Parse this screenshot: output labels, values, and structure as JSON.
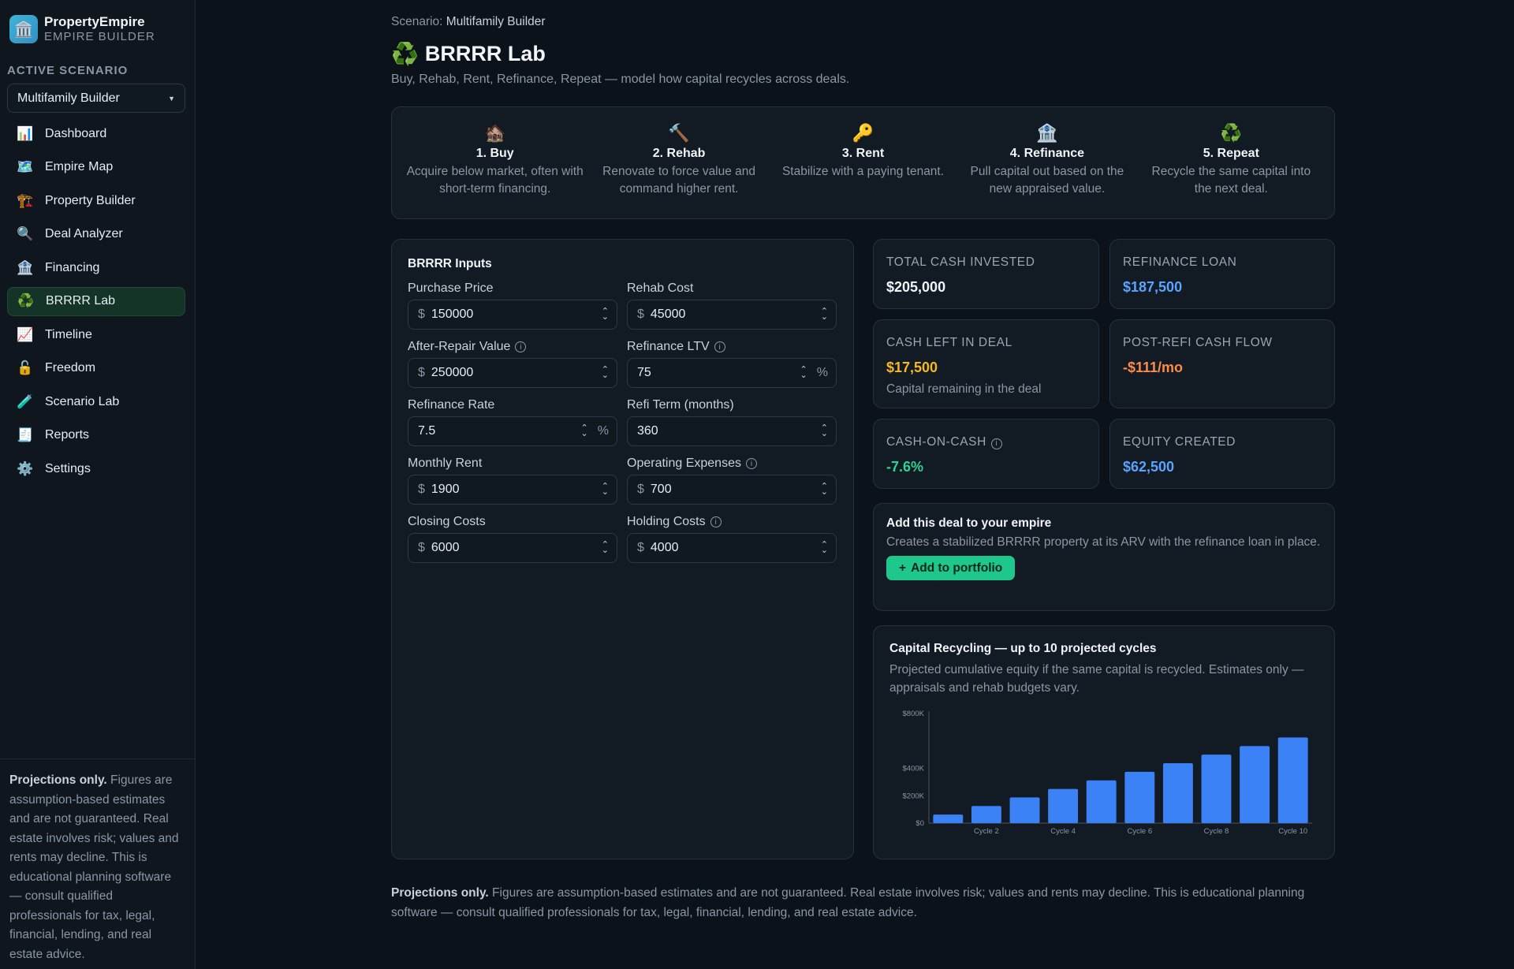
{
  "brand": {
    "icon": "🏛️",
    "name": "PropertyEmpire",
    "sub": "EMPIRE BUILDER"
  },
  "sidebar": {
    "active_label": "ACTIVE SCENARIO",
    "scenario": "Multifamily Builder",
    "items": [
      {
        "icon": "📊",
        "label": "Dashboard"
      },
      {
        "icon": "🗺️",
        "label": "Empire Map"
      },
      {
        "icon": "🏗️",
        "label": "Property Builder"
      },
      {
        "icon": "🔍",
        "label": "Deal Analyzer"
      },
      {
        "icon": "🏦",
        "label": "Financing"
      },
      {
        "icon": "♻️",
        "label": "BRRRR Lab"
      },
      {
        "icon": "📈",
        "label": "Timeline"
      },
      {
        "icon": "🔓",
        "label": "Freedom"
      },
      {
        "icon": "🧪",
        "label": "Scenario Lab"
      },
      {
        "icon": "🧾",
        "label": "Reports"
      },
      {
        "icon": "⚙️",
        "label": "Settings"
      }
    ],
    "footer_bold": "Projections only.",
    "footer_text": " Figures are assumption-based estimates and are not guaranteed. Real estate involves risk; values and rents may decline. This is educational planning software — consult qualified professionals for tax, legal, financial, lending, and real estate advice."
  },
  "header": {
    "crumb_label": "Scenario:",
    "crumb_value": "Multifamily Builder",
    "icon": "♻️",
    "title": "BRRRR Lab",
    "subtitle": "Buy, Rehab, Rent, Refinance, Repeat — model how capital recycles across deals."
  },
  "steps": [
    {
      "icon": "🏚️",
      "title": "1. Buy",
      "desc": "Acquire below market, often with short-term financing."
    },
    {
      "icon": "🔨",
      "title": "2. Rehab",
      "desc": "Renovate to force value and command higher rent."
    },
    {
      "icon": "🔑",
      "title": "3. Rent",
      "desc": "Stabilize with a paying tenant."
    },
    {
      "icon": "🏦",
      "title": "4. Refinance",
      "desc": "Pull capital out based on the new appraised value."
    },
    {
      "icon": "♻️",
      "title": "5. Repeat",
      "desc": "Recycle the same capital into the next deal."
    }
  ],
  "inputs": {
    "title": "BRRRR Inputs",
    "fields": [
      {
        "label": "Purchase Price",
        "prefix": "$",
        "value": "150000",
        "suffix": "",
        "info": false
      },
      {
        "label": "Rehab Cost",
        "prefix": "$",
        "value": "45000",
        "suffix": "",
        "info": false
      },
      {
        "label": "After-Repair Value",
        "prefix": "$",
        "value": "250000",
        "suffix": "",
        "info": true
      },
      {
        "label": "Refinance LTV",
        "prefix": "",
        "value": "75",
        "suffix": "%",
        "info": true
      },
      {
        "label": "Refinance Rate",
        "prefix": "",
        "value": "7.5",
        "suffix": "%",
        "info": false
      },
      {
        "label": "Refi Term (months)",
        "prefix": "",
        "value": "360",
        "suffix": "",
        "info": false
      },
      {
        "label": "Monthly Rent",
        "prefix": "$",
        "value": "1900",
        "suffix": "",
        "info": false
      },
      {
        "label": "Operating Expenses",
        "prefix": "$",
        "value": "700",
        "suffix": "",
        "info": true
      },
      {
        "label": "Closing Costs",
        "prefix": "$",
        "value": "6000",
        "suffix": "",
        "info": false
      },
      {
        "label": "Holding Costs",
        "prefix": "$",
        "value": "4000",
        "suffix": "",
        "info": true
      }
    ]
  },
  "metrics": {
    "total_cash": {
      "label": "TOTAL CASH INVESTED",
      "value": "$205,000",
      "color": "#f2f5f8"
    },
    "refi_loan": {
      "label": "REFINANCE LOAN",
      "value": "$187,500",
      "color": "#5aa3ff"
    },
    "cash_left": {
      "label": "CASH LEFT IN DEAL",
      "value": "$17,500",
      "color": "#f5b829",
      "note": "Capital remaining in the deal"
    },
    "post_refi": {
      "label": "POST-REFI CASH FLOW",
      "value": "-$111/mo",
      "color": "#ff8a4c"
    },
    "coc": {
      "label": "CASH-ON-CASH",
      "value": "-7.6%",
      "color": "#2fd38f"
    },
    "equity": {
      "label": "EQUITY CREATED",
      "value": "$62,500",
      "color": "#5aa3ff"
    }
  },
  "add": {
    "title": "Add this deal to your empire",
    "desc": "Creates a stabilized BRRRR property at its ARV with the refinance loan in place.",
    "button": "Add to portfolio"
  },
  "chart": {
    "title": "Capital Recycling — up to 10 projected cycles",
    "desc": "Projected cumulative equity if the same capital is recycled. Estimates only — appraisals and rehab budgets vary."
  },
  "chart_data": {
    "type": "bar",
    "categories": [
      "Cycle 1",
      "Cycle 2",
      "Cycle 3",
      "Cycle 4",
      "Cycle 5",
      "Cycle 6",
      "Cycle 7",
      "Cycle 8",
      "Cycle 9",
      "Cycle 10"
    ],
    "x_tick_labels": [
      "Cycle 2",
      "Cycle 4",
      "Cycle 6",
      "Cycle 8",
      "Cycle 10"
    ],
    "values": [
      62500,
      125000,
      187500,
      250000,
      312500,
      375000,
      437500,
      500000,
      562500,
      625000
    ],
    "y_ticks": [
      {
        "value": 0,
        "label": "$0"
      },
      {
        "value": 200000,
        "label": "$200K"
      },
      {
        "value": 400000,
        "label": "$400K"
      },
      {
        "value": 800000,
        "label": "$800K"
      }
    ],
    "ylim": [
      0,
      800000
    ],
    "bar_color": "#3b82f6",
    "title": "Capital Recycling — up to 10 projected cycles",
    "xlabel": "",
    "ylabel": ""
  },
  "footer": {
    "bold": "Projections only.",
    "text": " Figures are assumption-based estimates and are not guaranteed. Real estate involves risk; values and rents may decline. This is educational planning software — consult qualified professionals for tax, legal, financial, lending, and real estate advice."
  }
}
